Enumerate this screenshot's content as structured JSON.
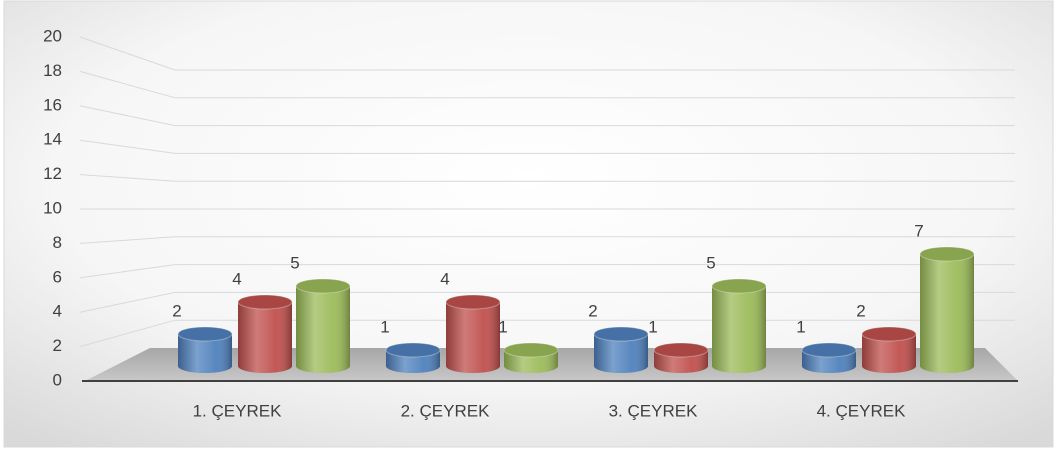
{
  "chart_data": {
    "type": "bar3d",
    "categories": [
      "1. ÇEYREK",
      "2. ÇEYREK",
      "3. ÇEYREK",
      "4. ÇEYREK"
    ],
    "series": [
      {
        "color": "#4f81bd",
        "values": [
          2,
          1,
          2,
          1
        ]
      },
      {
        "color": "#c0504d",
        "values": [
          4,
          4,
          1,
          2
        ]
      },
      {
        "color": "#9bbb59",
        "values": [
          5,
          1,
          5,
          7
        ]
      }
    ],
    "ylim": [
      0,
      20
    ],
    "yticks": [
      0,
      2,
      4,
      6,
      8,
      10,
      12,
      14,
      16,
      18,
      20
    ],
    "grid": true
  }
}
